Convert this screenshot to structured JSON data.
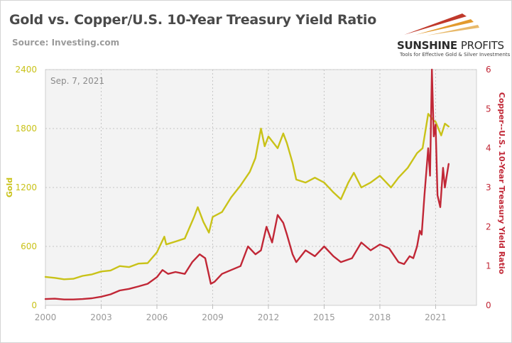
{
  "header": {
    "title": "Gold vs. Copper/U.S. 10-Year Treasury Yield Ratio",
    "source": "Source: Investing.com"
  },
  "logo": {
    "name_bold": "SUNSHINE",
    "name_light": "PROFITS",
    "tagline": "Tools for Effective Gold & Silver Investments"
  },
  "colors": {
    "gold": "#c9c218",
    "ratio": "#c12736",
    "plot_bg": "#f3f3f3",
    "axis_text": "#999999"
  },
  "chart_data": {
    "type": "line",
    "title": "Gold vs. Copper/U.S. 10-Year Treasury Yield Ratio",
    "annotation": "Sep. 7, 2021",
    "x_ticks": [
      "2000",
      "2003",
      "2006",
      "2009",
      "2012",
      "2015",
      "2018",
      "2021"
    ],
    "xlim": [
      2000,
      2023.2
    ],
    "ylabel_left": "Gold",
    "ylabel_right": "Copper--U.S. 10-Year Treasury Yield Ratio",
    "ylim_left": [
      0,
      2400
    ],
    "ylim_right": [
      0,
      6
    ],
    "yticks_left": [
      "0",
      "600",
      "1200",
      "1800",
      "2400"
    ],
    "yticks_right": [
      "0",
      "1",
      "2",
      "3",
      "4",
      "5",
      "6"
    ],
    "grid": true,
    "series": [
      {
        "axis": "left",
        "x": [
          2000.0,
          2000.5,
          2001.0,
          2001.5,
          2002.0,
          2002.5,
          2003.0,
          2003.5,
          2004.0,
          2004.5,
          2005.0,
          2005.5,
          2006.0,
          2006.4,
          2006.5,
          2007.0,
          2007.5,
          2008.0,
          2008.2,
          2008.5,
          2008.8,
          2009.0,
          2009.5,
          2010.0,
          2010.5,
          2011.0,
          2011.3,
          2011.6,
          2011.8,
          2012.0,
          2012.5,
          2012.8,
          2013.0,
          2013.3,
          2013.5,
          2014.0,
          2014.5,
          2015.0,
          2015.5,
          2015.9,
          2016.3,
          2016.6,
          2017.0,
          2017.5,
          2018.0,
          2018.6,
          2019.0,
          2019.5,
          2020.0,
          2020.3,
          2020.6,
          2020.9,
          2021.0,
          2021.3,
          2021.5,
          2021.7
        ],
        "y": [
          290,
          280,
          265,
          270,
          300,
          315,
          345,
          355,
          400,
          390,
          425,
          430,
          540,
          700,
          620,
          650,
          680,
          900,
          1000,
          850,
          740,
          900,
          950,
          1100,
          1220,
          1360,
          1500,
          1800,
          1620,
          1720,
          1600,
          1750,
          1650,
          1450,
          1280,
          1250,
          1300,
          1250,
          1150,
          1080,
          1250,
          1350,
          1200,
          1250,
          1320,
          1200,
          1300,
          1400,
          1550,
          1600,
          1950,
          1880,
          1870,
          1730,
          1850,
          1820
        ]
      },
      {
        "axis": "right",
        "x": [
          2000.0,
          2000.5,
          2001.0,
          2001.5,
          2002.0,
          2002.5,
          2003.0,
          2003.5,
          2004.0,
          2004.5,
          2005.0,
          2005.5,
          2006.0,
          2006.3,
          2006.6,
          2007.0,
          2007.5,
          2007.9,
          2008.3,
          2008.6,
          2008.9,
          2009.1,
          2009.5,
          2010.0,
          2010.5,
          2010.9,
          2011.3,
          2011.6,
          2011.9,
          2012.2,
          2012.5,
          2012.8,
          2013.0,
          2013.3,
          2013.5,
          2014.0,
          2014.5,
          2015.0,
          2015.5,
          2015.9,
          2016.5,
          2017.0,
          2017.5,
          2018.0,
          2018.5,
          2019.0,
          2019.3,
          2019.6,
          2019.8,
          2020.0,
          2020.15,
          2020.25,
          2020.4,
          2020.6,
          2020.7,
          2020.8,
          2020.9,
          2021.0,
          2021.1,
          2021.25,
          2021.4,
          2021.5,
          2021.6,
          2021.7
        ],
        "y": [
          0.16,
          0.17,
          0.15,
          0.15,
          0.16,
          0.18,
          0.22,
          0.28,
          0.38,
          0.42,
          0.48,
          0.55,
          0.72,
          0.9,
          0.8,
          0.85,
          0.8,
          1.1,
          1.3,
          1.2,
          0.55,
          0.6,
          0.8,
          0.9,
          1.0,
          1.5,
          1.3,
          1.4,
          2.0,
          1.6,
          2.3,
          2.1,
          1.8,
          1.3,
          1.1,
          1.4,
          1.25,
          1.5,
          1.25,
          1.1,
          1.2,
          1.6,
          1.4,
          1.55,
          1.45,
          1.1,
          1.05,
          1.25,
          1.2,
          1.5,
          1.9,
          1.8,
          2.8,
          4.0,
          3.3,
          6.0,
          4.3,
          4.6,
          2.8,
          2.5,
          3.5,
          3.0,
          3.3,
          3.6
        ]
      }
    ]
  }
}
